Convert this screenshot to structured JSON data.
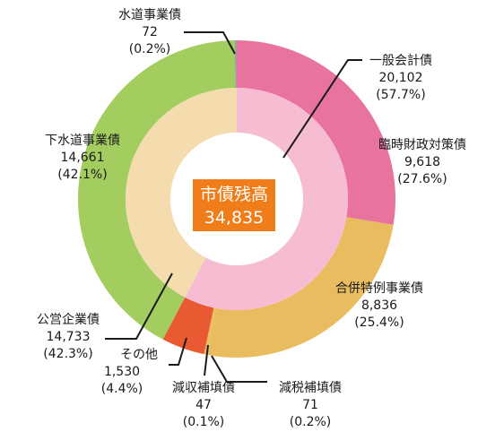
{
  "chart_data": {
    "type": "donut",
    "center": {
      "title": "市債残高",
      "value": "34,835"
    },
    "colors": {
      "center_box": "#f07d1a",
      "leader_line": "#1a1a1a",
      "outer_general_base": "#e8739f",
      "outer_rinji": "#e8739f",
      "outer_gappei": "#e9bd5f",
      "outer_genshu": "#e8bd58",
      "outer_genzei": "#e8bd58",
      "outer_other": "#e95a33",
      "outer_gesui": "#a3cd5f",
      "outer_suido": "#9f9f9f",
      "inner_general": "#f5bcd2",
      "inner_public": "#f4dcae"
    },
    "inner_ring": [
      {
        "name": "一般会計債",
        "value": 20102,
        "color_key": "inner_general"
      },
      {
        "name": "公営企業債",
        "value": 14733,
        "color_key": "inner_public"
      }
    ],
    "outer_ring": [
      {
        "name": "臨時財政対策債",
        "value": 9618,
        "color_key": "outer_rinji"
      },
      {
        "name": "合併特例事業債",
        "value": 8836,
        "color_key": "outer_gappei"
      },
      {
        "name": "減税補填債",
        "value": 71,
        "color_key": "outer_genzei"
      },
      {
        "name": "減収補填債",
        "value": 47,
        "color_key": "outer_genshu"
      },
      {
        "name": "その他",
        "value": 1530,
        "color_key": "outer_other"
      },
      {
        "name": "下水道事業債",
        "value": 14661,
        "color_key": "outer_gesui"
      },
      {
        "name": "水道事業債",
        "value": 72,
        "color_key": "outer_suido"
      }
    ],
    "labels": {
      "suido": {
        "name": "水道事業債",
        "value": "72",
        "pct": "(0.2%)"
      },
      "ippan": {
        "name": "一般会計債",
        "value": "20,102",
        "pct": "(57.7%)"
      },
      "rinji": {
        "name": "臨時財政対策債",
        "value": "9,618",
        "pct": "(27.6%)"
      },
      "gesui": {
        "name": "下水道事業債",
        "value": "14,661",
        "pct": "(42.1%)"
      },
      "gappei": {
        "name": "合併特例事業債",
        "value": "8,836",
        "pct": "(25.4%)"
      },
      "koei": {
        "name": "公営企業債",
        "value": "14,733",
        "pct": "(42.3%)"
      },
      "sonota": {
        "name": "その他",
        "value": "1,530",
        "pct": "(4.4%)"
      },
      "genshu": {
        "name": "減収補填債",
        "value": "47",
        "pct": "(0.1%)"
      },
      "genzei": {
        "name": "減税補填債",
        "value": "71",
        "pct": "(0.2%)"
      }
    }
  }
}
